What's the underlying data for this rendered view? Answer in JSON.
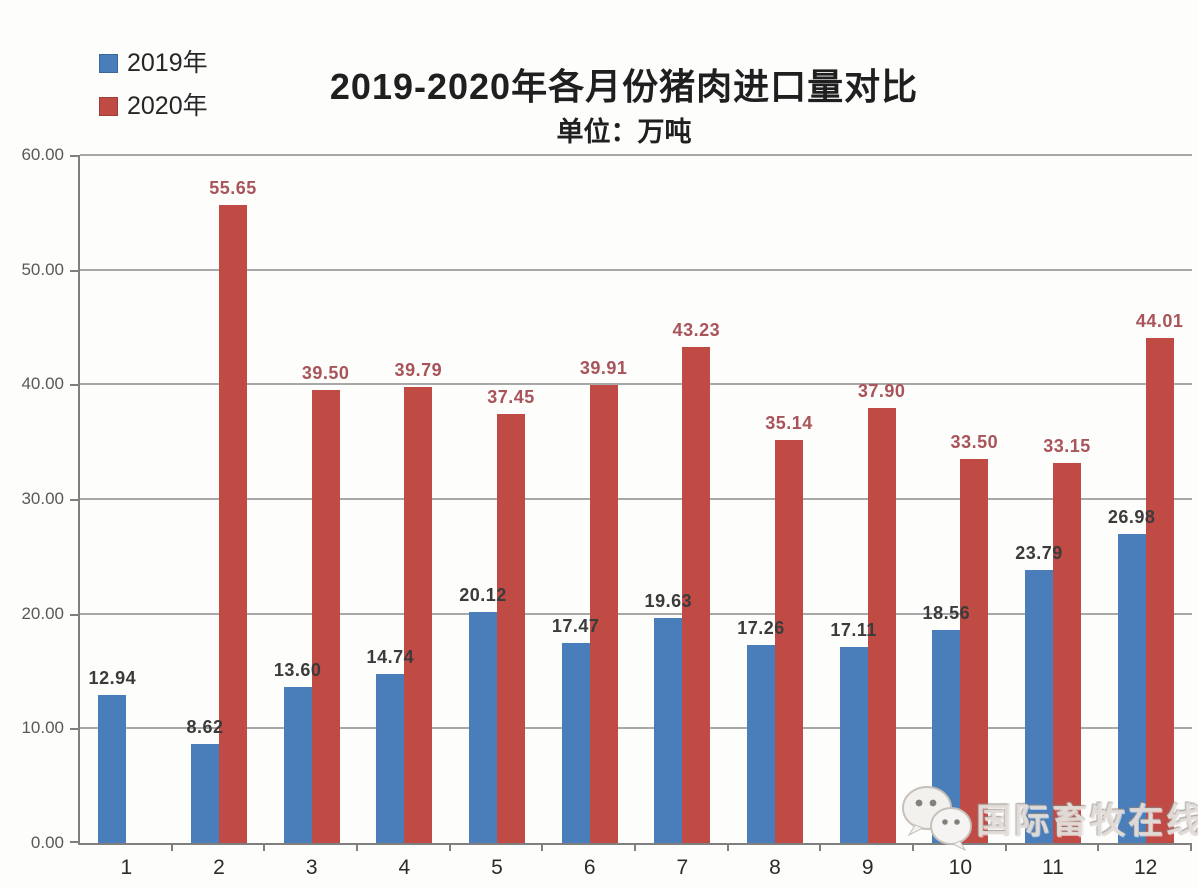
{
  "header": {
    "title": "2019-2020年各月份猪肉进口量对比",
    "subtitle": "单位：万吨"
  },
  "chart_data": {
    "type": "bar",
    "title": "2019-2020年各月份猪肉进口量对比",
    "subtitle": "单位：万吨",
    "unit": "万吨",
    "categories": [
      "1",
      "2",
      "3",
      "4",
      "5",
      "6",
      "7",
      "8",
      "9",
      "10",
      "11",
      "12"
    ],
    "series": [
      {
        "name": "2019年",
        "color": "#4a7ebb",
        "label_color": "#3b3b3b",
        "values": [
          12.94,
          8.62,
          13.6,
          14.74,
          20.12,
          17.47,
          19.63,
          17.26,
          17.11,
          18.56,
          23.79,
          26.98
        ]
      },
      {
        "name": "2020年",
        "color": "#c04b45",
        "label_color": "#a9545a",
        "values": [
          null,
          55.65,
          39.5,
          39.79,
          37.45,
          39.91,
          43.23,
          35.14,
          37.9,
          33.5,
          33.15,
          44.01
        ]
      }
    ],
    "xlabel": "",
    "ylabel": "",
    "ylim": [
      0,
      60
    ],
    "ytick_step": 10,
    "yticks": [
      "0.00",
      "10.00",
      "20.00",
      "30.00",
      "40.00",
      "50.00",
      "60.00"
    ],
    "grid": true,
    "legend_position": "top-left",
    "value_decimals": 2
  },
  "watermark": {
    "text": "国际畜牧在线",
    "icon": "wechat-icon"
  }
}
